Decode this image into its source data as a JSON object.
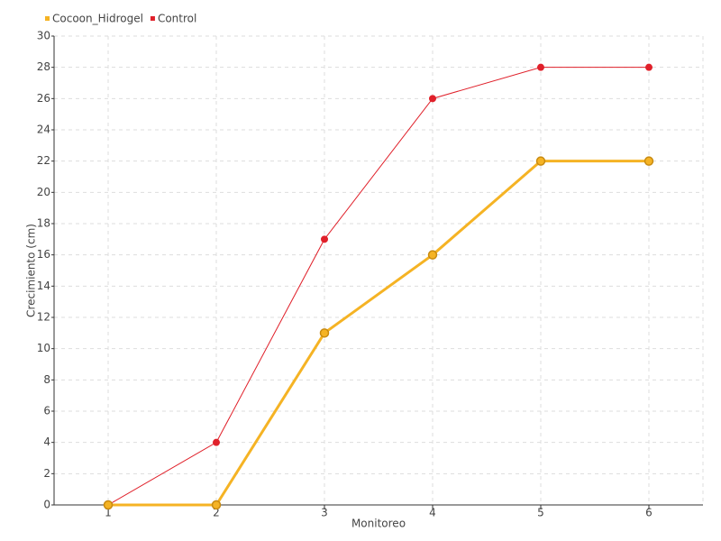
{
  "chart_data": {
    "type": "line",
    "x_label": "Monitoreo",
    "y_label": "Crecimiento (cm)",
    "categories": [
      "1",
      "2",
      "3",
      "4",
      "5",
      "6"
    ],
    "series": [
      {
        "name": "Cocoon_Hidrogel",
        "color": "#f5b324",
        "values": [
          0,
          0,
          11,
          16,
          22,
          22
        ]
      },
      {
        "name": "Control",
        "color": "#e0202a",
        "values": [
          0,
          4,
          17,
          26,
          28,
          28
        ]
      }
    ],
    "ylim": [
      0,
      30
    ],
    "yticks": [
      0,
      2,
      4,
      6,
      8,
      10,
      12,
      14,
      16,
      18,
      20,
      22,
      24,
      26,
      28,
      30
    ],
    "grid": true,
    "legend": "top-left"
  }
}
